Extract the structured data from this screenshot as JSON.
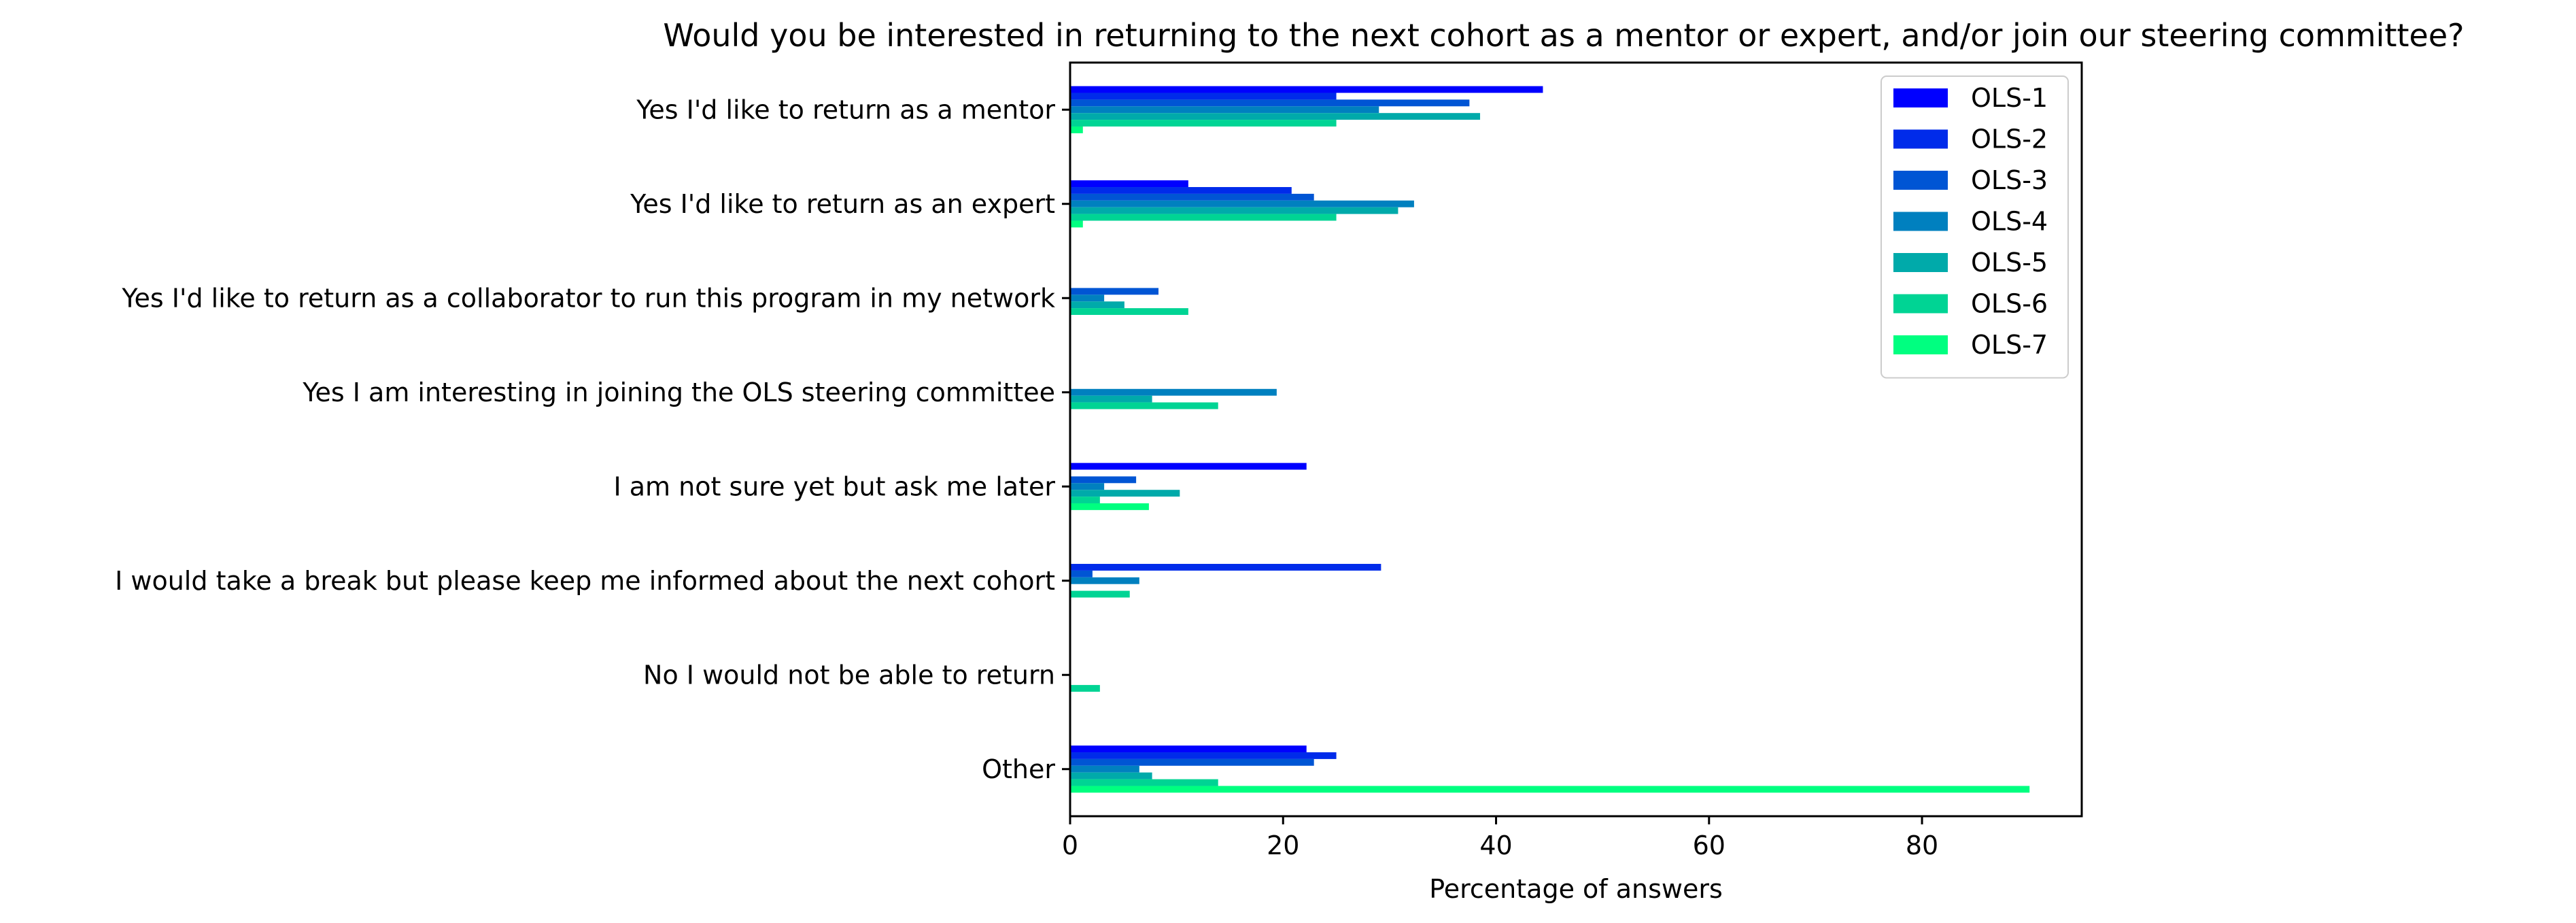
{
  "chart_data": {
    "type": "bar",
    "orientation": "horizontal",
    "title": "Would you be interested in returning to the next cohort as a mentor or expert, and/or join our steering committee?",
    "xlabel": "Percentage of answers",
    "ylabel": "",
    "xlim": [
      0,
      95
    ],
    "xticks": [
      0,
      20,
      40,
      60,
      80
    ],
    "grid": false,
    "legend_position": "top-right",
    "categories": [
      "Yes I'd like to return as a mentor",
      "Yes I'd like to return as an expert",
      "Yes I'd like to return as a collaborator to run this program in my network",
      "Yes I am interesting in joining the OLS steering committee",
      "I am not sure yet but ask me later",
      "I would take a break but please keep me informed about the next cohort",
      "No I would not be able to return",
      "Other"
    ],
    "series": [
      {
        "name": "OLS-1",
        "color": "#0000ff",
        "values": [
          44.4,
          11.1,
          0,
          0,
          22.2,
          0,
          0,
          22.2
        ]
      },
      {
        "name": "OLS-2",
        "color": "#002bea",
        "values": [
          25.0,
          20.8,
          0,
          0,
          0,
          29.2,
          0,
          25.0
        ]
      },
      {
        "name": "OLS-3",
        "color": "#0055d4",
        "values": [
          37.5,
          22.9,
          8.3,
          0,
          6.2,
          2.1,
          0,
          22.9
        ]
      },
      {
        "name": "OLS-4",
        "color": "#0080bf",
        "values": [
          29.0,
          32.3,
          3.2,
          19.4,
          3.2,
          6.5,
          0,
          6.5
        ]
      },
      {
        "name": "OLS-5",
        "color": "#00aaaa",
        "values": [
          38.5,
          30.8,
          5.1,
          7.7,
          10.3,
          0,
          0,
          7.7
        ]
      },
      {
        "name": "OLS-6",
        "color": "#00d494",
        "values": [
          25.0,
          25.0,
          11.1,
          13.9,
          2.8,
          5.6,
          2.8,
          13.9
        ]
      },
      {
        "name": "OLS-7",
        "color": "#00ff80",
        "values": [
          1.2,
          1.2,
          0,
          0,
          7.4,
          0,
          0,
          90.1
        ]
      }
    ]
  }
}
